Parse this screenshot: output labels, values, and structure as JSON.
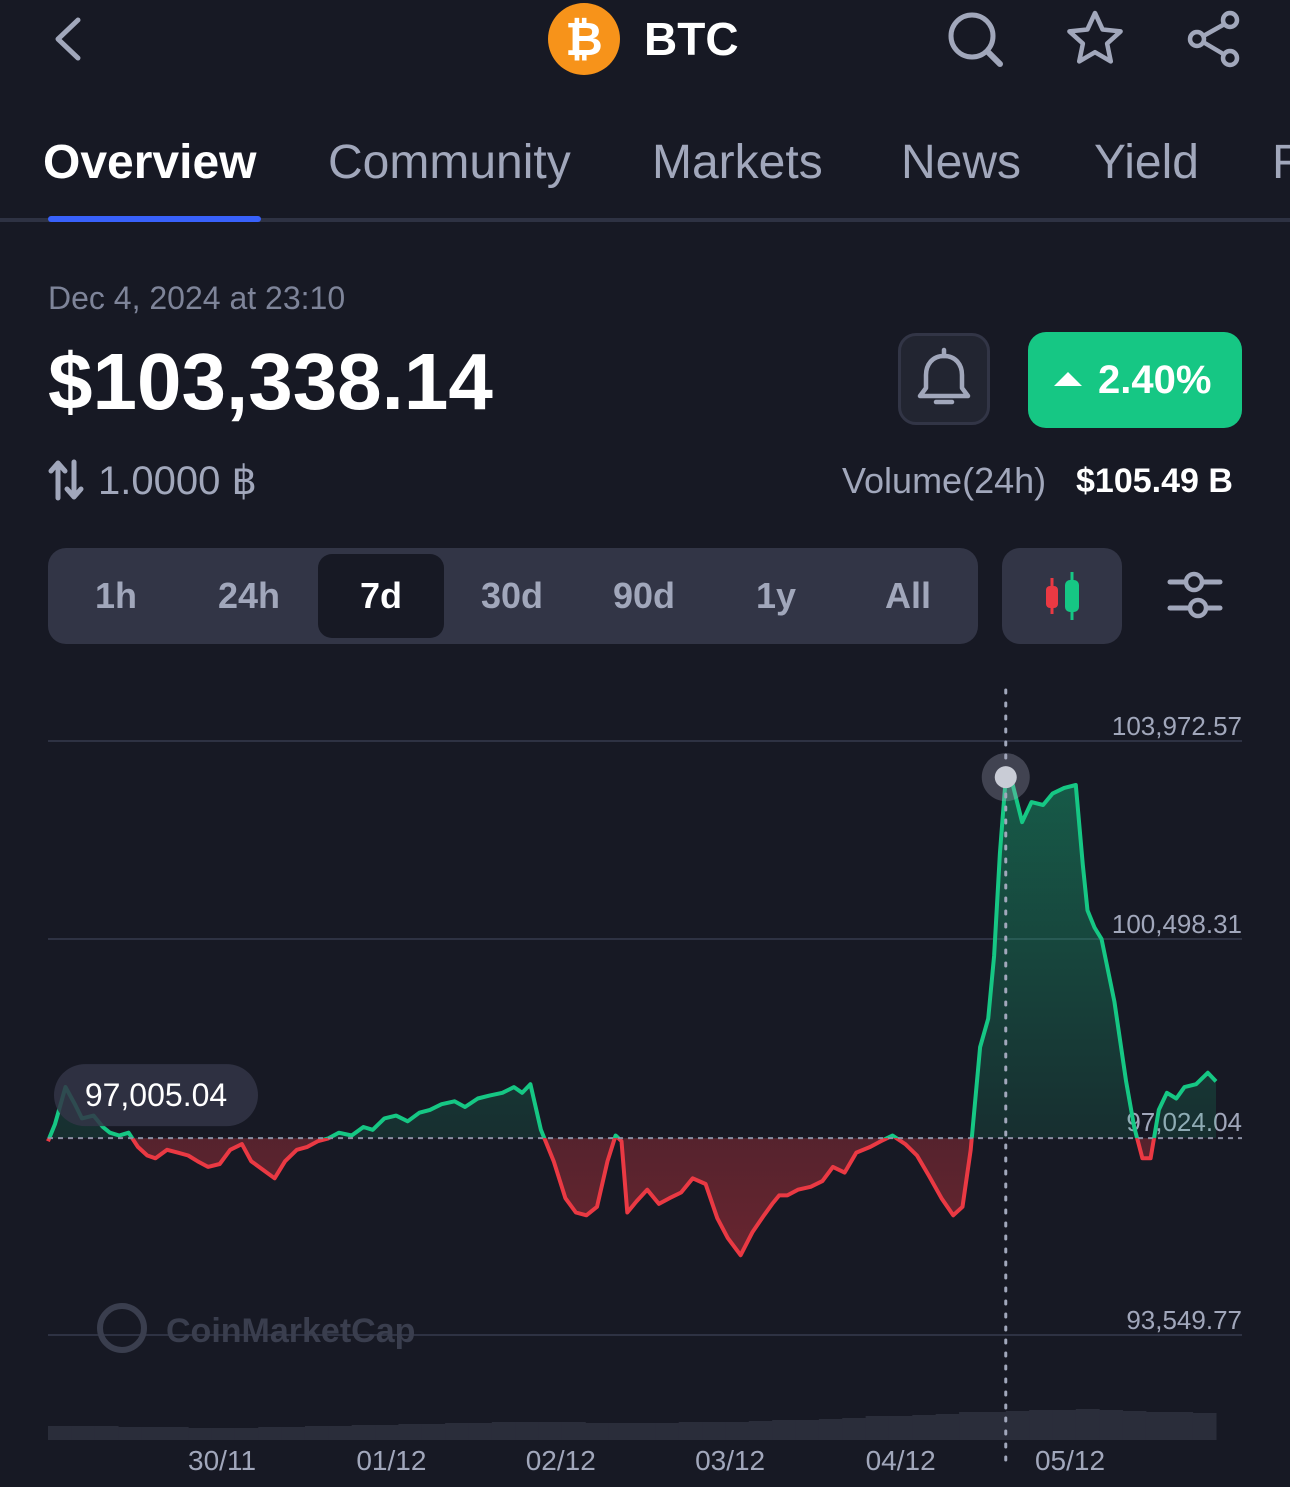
{
  "header": {
    "coin_symbol": "BTC",
    "coin_logo_glyph": "₿",
    "icons": [
      "back-chevron-icon",
      "search-icon",
      "star-icon",
      "share-icon"
    ]
  },
  "tabs": [
    {
      "label": "Overview",
      "active": true
    },
    {
      "label": "Community",
      "active": false
    },
    {
      "label": "Markets",
      "active": false
    },
    {
      "label": "News",
      "active": false
    },
    {
      "label": "Yield",
      "active": false
    },
    {
      "label": "F",
      "active": false
    }
  ],
  "price_block": {
    "timestamp": "Dec 4, 2024 at 23:10",
    "price": "$103,338.14",
    "change_pct": "2.40%",
    "conversion": "1.0000 ฿",
    "volume_label": "Volume(24h)",
    "volume_value": "$105.49 B"
  },
  "range_selector": {
    "options": [
      "1h",
      "24h",
      "7d",
      "30d",
      "90d",
      "1y",
      "All"
    ],
    "selected": "7d"
  },
  "colors": {
    "background": "#171924",
    "up": "#16c784",
    "down": "#ea3943",
    "accent": "#3861fb",
    "muted_text": "#a1a7bb"
  },
  "chart_data": {
    "type": "line",
    "baseline_label": "97,005.04",
    "baseline_value": 97005.04,
    "y_ticks": [
      {
        "label": "103,972.57",
        "value": 103972.57
      },
      {
        "label": "100,498.31",
        "value": 100498.31
      },
      {
        "label": "97,024.04",
        "value": 97024.04
      },
      {
        "label": "93,549.77",
        "value": 93549.77
      }
    ],
    "ylim": [
      93549.77,
      103972.57
    ],
    "x_tick_labels": [
      "30/11",
      "01/12",
      "02/12",
      "03/12",
      "04/12",
      "05/12"
    ],
    "x_domain": [
      0,
      100
    ],
    "x_tick_positions": [
      14.9,
      29.4,
      43.9,
      58.4,
      73.0,
      87.5
    ],
    "cursor_x": 82.0,
    "cursor_value": 103338.14,
    "watermark": "CoinMarketCap",
    "series": [
      {
        "x": [
          0,
          0.6,
          1.5,
          2.3,
          2.9,
          3.9,
          4.7,
          5.3,
          6.1,
          6.9,
          7.7,
          8.5,
          9.2,
          10.2,
          11.1,
          12.0,
          12.8,
          13.7,
          14.7,
          15.6,
          16.6,
          17.4,
          18.4,
          19.4,
          20.3,
          21.3,
          22.2,
          23.1,
          24.0,
          24.9,
          26.0,
          27.0,
          27.8,
          28.8,
          29.8,
          30.8,
          31.8,
          32.7,
          33.7,
          34.8,
          35.7,
          36.8,
          37.8,
          38.9,
          39.9,
          40.6,
          41.3,
          42.2,
          43.3,
          44.3,
          45.2,
          46.1,
          47.0,
          47.9,
          48.6,
          49.1,
          49.6,
          50.4,
          51.3,
          52.3,
          53.2,
          54.2,
          55.2,
          56.3,
          57.3,
          58.2,
          59.3,
          60.3,
          61.3,
          62.0,
          62.6,
          63.3,
          64.2,
          65.3,
          66.3,
          67.2,
          68.2,
          69.2,
          70.4,
          71.3,
          72.3,
          73.4,
          74.4,
          75.4,
          76.5,
          77.5,
          78.3,
          79.0,
          79.8,
          80.5,
          81.0,
          81.5,
          82.0,
          82.6,
          83.4,
          84.2,
          85.2,
          86.0,
          87.0,
          88.0,
          88.6,
          89.0,
          89.6,
          90.2,
          91.3,
          92.3,
          93.0,
          93.7,
          94.4,
          95.1,
          95.8,
          96.6,
          97.3,
          98.3,
          99.3,
          100
        ],
        "y": [
          96950,
          97250,
          97900,
          97600,
          97350,
          97400,
          97200,
          97100,
          97050,
          97100,
          96850,
          96700,
          96650,
          96800,
          96750,
          96700,
          96600,
          96500,
          96550,
          96800,
          96900,
          96600,
          96450,
          96300,
          96600,
          96800,
          96850,
          96950,
          97000,
          97100,
          97050,
          97200,
          97150,
          97350,
          97400,
          97300,
          97450,
          97500,
          97600,
          97650,
          97550,
          97700,
          97750,
          97800,
          97900,
          97800,
          97950,
          97150,
          96600,
          95950,
          95700,
          95650,
          95800,
          96600,
          97050,
          96950,
          95700,
          95900,
          96100,
          95850,
          95950,
          96050,
          96300,
          96200,
          95600,
          95250,
          94950,
          95350,
          95650,
          95850,
          96000,
          96000,
          96100,
          96150,
          96250,
          96500,
          96400,
          96750,
          96850,
          96950,
          97050,
          96900,
          96700,
          96350,
          95950,
          95650,
          95800,
          96800,
          98600,
          99100,
          100200,
          102000,
          103338,
          103200,
          102550,
          102900,
          102850,
          103050,
          103150,
          103200,
          101800,
          101000,
          100700,
          100500,
          99400,
          98000,
          97200,
          96650,
          96650,
          97500,
          97800,
          97700,
          97900,
          97950,
          98150,
          98000
        ]
      }
    ],
    "volume": [
      14,
      14,
      14,
      13,
      13,
      13,
      12,
      12,
      12,
      13,
      13,
      14,
      14,
      15,
      15,
      16,
      16,
      17,
      17,
      18,
      18,
      18,
      18,
      17,
      17,
      17,
      17,
      18,
      18,
      18,
      19,
      20,
      20,
      21,
      22,
      24,
      24,
      25,
      26,
      28,
      28,
      29,
      30,
      30,
      31,
      30,
      29,
      28,
      28,
      27
    ]
  }
}
